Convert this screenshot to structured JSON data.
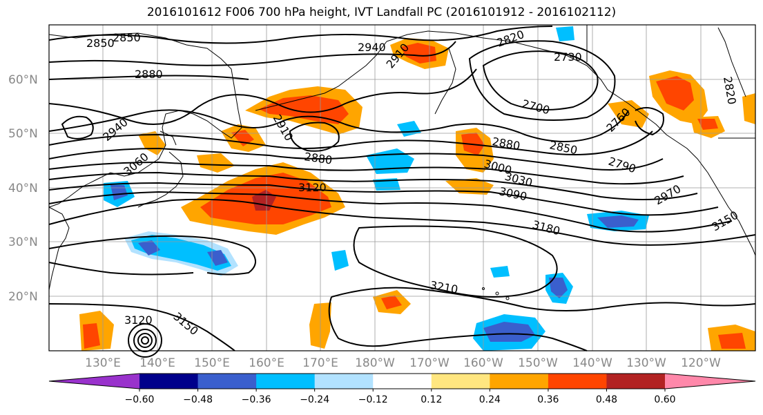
{
  "title": "2016101612 F006 700 hPa height, IVT Landfall PC (2016101912 - 2016102112)",
  "latitude_labels": [
    "60°N",
    "50°N",
    "40°N",
    "30°N",
    "20°N"
  ],
  "longitude_labels": [
    "130°E",
    "140°E",
    "150°E",
    "160°E",
    "170°E",
    "180°W",
    "170°W",
    "160°W",
    "150°W",
    "140°W",
    "130°W",
    "120°W"
  ],
  "contour_labels": [
    "2850",
    "2850",
    "2880",
    "2940",
    "2910",
    "2820",
    "2730",
    "2820",
    "2700",
    "2760",
    "2940",
    "2910",
    "2880",
    "2880",
    "2850",
    "2790",
    "3060",
    "3120",
    "3000",
    "3030",
    "3090",
    "2970",
    "3180",
    "3150",
    "3210",
    "3120",
    "3150"
  ],
  "colorbar": {
    "ticks": [
      "−0.60",
      "−0.48",
      "−0.36",
      "−0.24",
      "−0.12",
      "0.12",
      "0.24",
      "0.36",
      "0.48",
      "0.60"
    ],
    "colors": [
      "#9932CC",
      "#00008B",
      "#3A5FCD",
      "#00BFFF",
      "#B2E2FF",
      "#FFFFFF",
      "#FFE680",
      "#FFA500",
      "#FF4500",
      "#B22222",
      "#FF88AA"
    ]
  },
  "colors": {
    "positive_strong": "#FF4500",
    "positive_mid": "#FFA500",
    "positive_weak": "#FFE680",
    "negative_weak": "#B2E2FF",
    "negative_mid": "#00BFFF",
    "negative_strong": "#3A5FCD",
    "gridline": "#999999",
    "contour": "#000000"
  }
}
